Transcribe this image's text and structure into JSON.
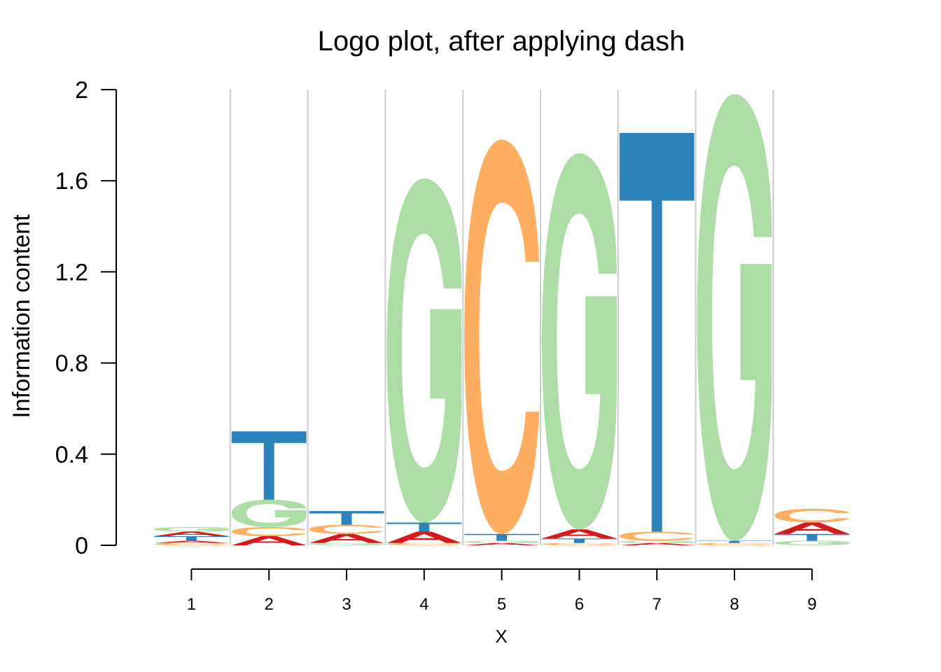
{
  "chart_data": {
    "type": "logo",
    "title": "Logo plot, after applying dash",
    "xlabel": "X",
    "ylabel": "Information content",
    "ylim": [
      0,
      2
    ],
    "yticks": [
      0,
      0.4,
      0.8,
      1.2,
      1.6,
      2
    ],
    "ytick_labels": [
      "0",
      "0.4",
      "0.8",
      "1.2",
      "1.6",
      "2"
    ],
    "positions": [
      "1",
      "2",
      "3",
      "4",
      "5",
      "6",
      "7",
      "8",
      "9"
    ],
    "colors": {
      "A": "#d7191c",
      "C": "#fdae61",
      "G": "#abdda4",
      "T": "#2b83ba"
    },
    "stacks": [
      [
        {
          "letter": "C",
          "height": 0.01
        },
        {
          "letter": "A",
          "height": 0.01
        },
        {
          "letter": "T",
          "height": 0.02
        },
        {
          "letter": "A",
          "height": 0.02
        },
        {
          "letter": "G",
          "height": 0.02
        }
      ],
      [
        {
          "letter": "A",
          "height": 0.04
        },
        {
          "letter": "C",
          "height": 0.04
        },
        {
          "letter": "G",
          "height": 0.12
        },
        {
          "letter": "T",
          "height": 0.3
        }
      ],
      [
        {
          "letter": "G",
          "height": 0.01
        },
        {
          "letter": "A",
          "height": 0.04
        },
        {
          "letter": "C",
          "height": 0.04
        },
        {
          "letter": "T",
          "height": 0.06
        }
      ],
      [
        {
          "letter": "C",
          "height": 0.01
        },
        {
          "letter": "A",
          "height": 0.05
        },
        {
          "letter": "T",
          "height": 0.04
        },
        {
          "letter": "G",
          "height": 1.51
        }
      ],
      [
        {
          "letter": "A",
          "height": 0.01
        },
        {
          "letter": "G",
          "height": 0.01
        },
        {
          "letter": "T",
          "height": 0.03
        },
        {
          "letter": "C",
          "height": 1.73
        }
      ],
      [
        {
          "letter": "C",
          "height": 0.01
        },
        {
          "letter": "T",
          "height": 0.02
        },
        {
          "letter": "A",
          "height": 0.04
        },
        {
          "letter": "G",
          "height": 1.65
        }
      ],
      [
        {
          "letter": "A",
          "height": 0.01
        },
        {
          "letter": "G",
          "height": 0.01
        },
        {
          "letter": "C",
          "height": 0.04
        },
        {
          "letter": "T",
          "height": 1.75
        }
      ],
      [
        {
          "letter": "C",
          "height": 0.01
        },
        {
          "letter": "T",
          "height": 0.01
        },
        {
          "letter": "G",
          "height": 1.96
        }
      ],
      [
        {
          "letter": "G",
          "height": 0.02
        },
        {
          "letter": "T",
          "height": 0.03
        },
        {
          "letter": "A",
          "height": 0.05
        },
        {
          "letter": "C",
          "height": 0.06
        }
      ]
    ]
  }
}
